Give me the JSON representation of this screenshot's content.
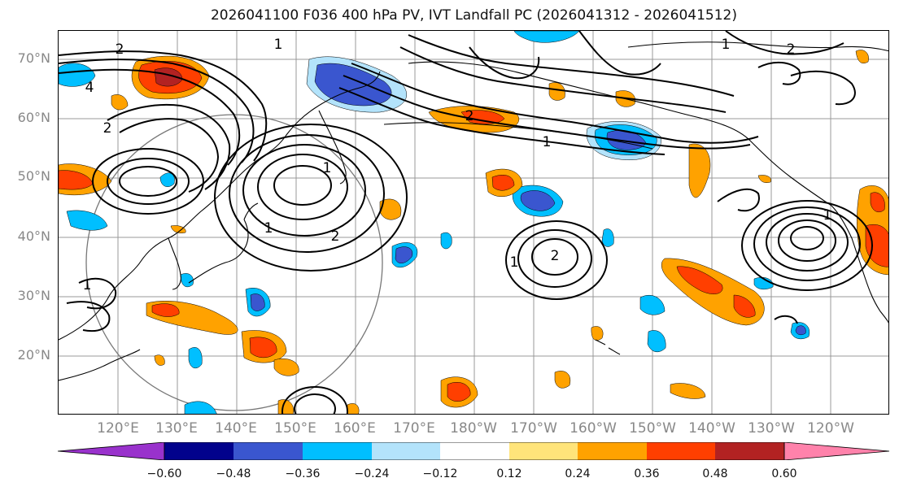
{
  "title": "2026041100 F036 400 hPa PV, IVT Landfall PC (2026041312 - 2026041512)",
  "map": {
    "lat_labels": [
      "70°N",
      "60°N",
      "50°N",
      "40°N",
      "30°N",
      "20°N"
    ],
    "lon_labels": [
      "120°E",
      "130°E",
      "140°E",
      "150°E",
      "160°E",
      "170°E",
      "180°W",
      "170°W",
      "160°W",
      "150°W",
      "140°W",
      "130°W",
      "120°W"
    ],
    "contour_labels": [
      "2",
      "1",
      "4",
      "2",
      "1",
      "2",
      "1",
      "2",
      "1",
      "1",
      "2",
      "1",
      "1",
      "2",
      "1"
    ],
    "colors": {
      "lightblue": "#b3e3fb",
      "cyan": "#00bfff",
      "royalblue": "#3a56cf",
      "navy": "#02028c",
      "purple": "#9932cc",
      "yellow": "#ffe47a",
      "orange": "#ffa200",
      "redorange": "#ff3f00",
      "darkred": "#b22222",
      "pink": "#ff82ab"
    }
  },
  "colorbar": {
    "ticks": [
      "−0.60",
      "−0.48",
      "−0.36",
      "−0.24",
      "−0.12",
      "0.12",
      "0.24",
      "0.36",
      "0.48",
      "0.60"
    ],
    "colors": [
      "#9932cc",
      "#02028c",
      "#3a56cf",
      "#00bfff",
      "#b3e3fb",
      "#ffffff",
      "#ffe47a",
      "#ffa200",
      "#ff3f00",
      "#b22222",
      "#ff82ab"
    ]
  }
}
